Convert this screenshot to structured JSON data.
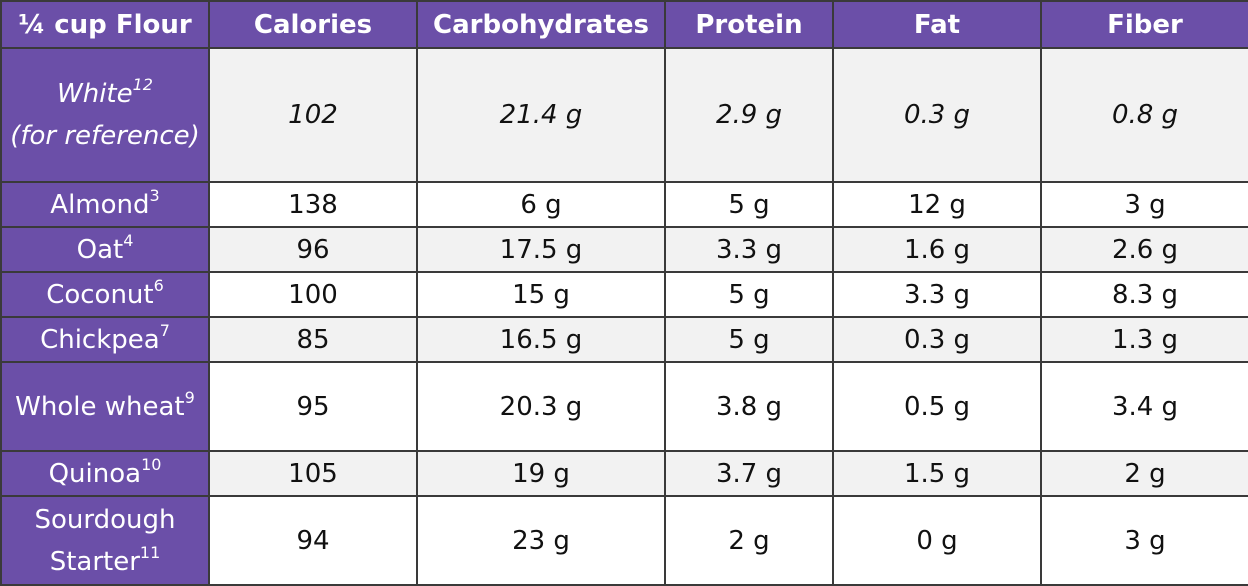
{
  "table": {
    "header": [
      "¼ cup Flour",
      "Calories",
      "Carbohydrates",
      "Protein",
      "Fat",
      "Fiber"
    ],
    "rows": [
      {
        "name": "White",
        "ref": "12",
        "qualifier": "(for reference)",
        "values": [
          "102",
          "21.4 g",
          "2.9 g",
          "0.3 g",
          "0.8 g"
        ]
      },
      {
        "name": "Almond",
        "ref": "3",
        "values": [
          "138",
          "6 g",
          "5 g",
          "12 g",
          "3 g"
        ]
      },
      {
        "name": "Oat",
        "ref": "4",
        "values": [
          "96",
          "17.5 g",
          "3.3 g",
          "1.6 g",
          "2.6 g"
        ]
      },
      {
        "name": "Coconut",
        "ref": "6",
        "values": [
          "100",
          "15 g",
          "5 g",
          "3.3 g",
          "8.3 g"
        ]
      },
      {
        "name": "Chickpea",
        "ref": "7",
        "values": [
          "85",
          "16.5 g",
          "5 g",
          "0.3 g",
          "1.3 g"
        ]
      },
      {
        "name": "Whole wheat",
        "ref": "9",
        "values": [
          "95",
          "20.3 g",
          "3.8 g",
          "0.5 g",
          "3.4 g"
        ]
      },
      {
        "name": "Quinoa",
        "ref": "10",
        "values": [
          "105",
          "19 g",
          "3.7 g",
          "1.5 g",
          "2 g"
        ]
      },
      {
        "name": "Sourdough Starter",
        "ref": "11",
        "values": [
          "94",
          "23 g",
          "2 g",
          "0 g",
          "3 g"
        ]
      }
    ]
  }
}
